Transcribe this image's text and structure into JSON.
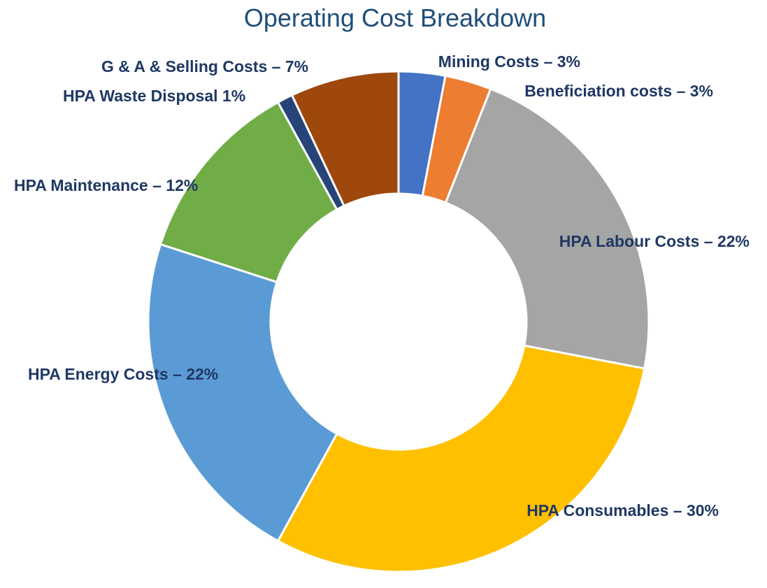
{
  "chart_data": {
    "type": "donut",
    "title": "Operating Cost Breakdown",
    "values": [
      3,
      3,
      22,
      30,
      22,
      12,
      1,
      7
    ],
    "value_labels": [
      "Mining Costs – 3%",
      "Beneficiation costs – 3%",
      "HPA Labour Costs – 22%",
      "HPA Consumables – 30%",
      "HPA Energy Costs – 22%",
      "HPA Maintenance – 12%",
      "HPA Waste Disposal 1%",
      "G & A & Selling Costs – 7%"
    ],
    "colors": [
      "#4472c4",
      "#ed7d31",
      "#a5a5a5",
      "#ffc000",
      "#5b9bd5",
      "#70ad47",
      "#264478",
      "#9e480e"
    ]
  }
}
